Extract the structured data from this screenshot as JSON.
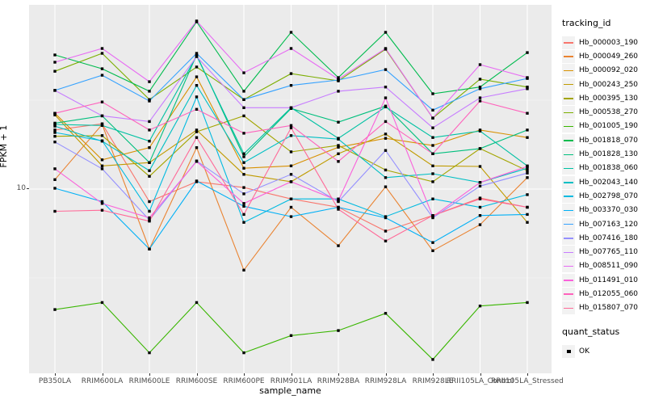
{
  "figure": {
    "y_axis_title": "FPKM + 1",
    "x_axis_title": "sample_name",
    "y_tick_label": "10",
    "colors": {
      "panel_background": "#EBEBEB",
      "grid_line": "#FFFFFF",
      "tick_text": "#4D4D4D",
      "point_marker": "#000000",
      "legend_key_background": "#F2F2F2"
    },
    "legend": {
      "tracking_title": "tracking_id",
      "quant_title": "quant_status",
      "quant_items": [
        {
          "label": "OK",
          "marker": "black-filled-square"
        }
      ]
    }
  },
  "chart_data": {
    "type": "line",
    "title": "",
    "xlabel": "sample_name",
    "ylabel": "FPKM + 1",
    "y_scale": "log10",
    "y_ticks": [
      10
    ],
    "y_minor_ticks": [
      3.162,
      31.62
    ],
    "grid": true,
    "legend_position": "right",
    "point_marker": "filled-square",
    "categories": [
      "PB350LA",
      "RRIM600LA",
      "RRIM600LE",
      "RRIM600SE",
      "RRIM600PE",
      "RRIM901LA",
      "RRIM928BA",
      "RRIM928LA",
      "RRIM928LE",
      "RRII105LA_Control",
      "RRII105LA_Stressed"
    ],
    "series": [
      {
        "name": "Hb_000003_190",
        "color": "#F8766D",
        "values": [
          21.5,
          23.3,
          8.5,
          11.0,
          10.2,
          8.8,
          7.9,
          5.8,
          7.1,
          8.9,
          7.9
        ]
      },
      {
        "name": "Hb_000049_260",
        "color": "#EA8331",
        "values": [
          11.3,
          23.1,
          4.6,
          17.1,
          3.5,
          7.9,
          4.8,
          10.3,
          4.5,
          6.3,
          11.6
        ]
      },
      {
        "name": "Hb_000092_020",
        "color": "#D89000",
        "values": [
          26.7,
          14.6,
          17.1,
          42.8,
          13.1,
          13.5,
          17.2,
          19.3,
          17.6,
          21.5,
          19.5
        ]
      },
      {
        "name": "Hb_000243_250",
        "color": "#C09B00",
        "values": [
          26.1,
          13.5,
          14.1,
          21.5,
          12.1,
          11.0,
          15.8,
          20.4,
          13.5,
          13.4,
          6.5
        ]
      },
      {
        "name": "Hb_000395_130",
        "color": "#A3A500",
        "values": [
          19.8,
          20.0,
          11.8,
          21.0,
          25.8,
          16.2,
          17.6,
          12.8,
          11.0,
          16.9,
          12.7
        ]
      },
      {
        "name": "Hb_000538_270",
        "color": "#7CAE00",
        "values": [
          46.0,
          58.0,
          31.9,
          48.6,
          31.9,
          44.6,
          40.6,
          61.2,
          25.1,
          41.5,
          37.5
        ]
      },
      {
        "name": "Hb_001005_190",
        "color": "#39B600",
        "values": [
          2.1,
          2.3,
          1.2,
          2.3,
          1.2,
          1.5,
          1.6,
          2.0,
          1.1,
          2.2,
          2.3
        ]
      },
      {
        "name": "Hb_001818_070",
        "color": "#00BB4E",
        "values": [
          56.8,
          47.5,
          35.5,
          87.3,
          35.5,
          76.2,
          42.4,
          76.2,
          34.4,
          37.5,
          58.6
        ]
      },
      {
        "name": "Hb_001828_130",
        "color": "#00BF7D",
        "values": [
          23.5,
          25.8,
          14.1,
          56.8,
          15.2,
          28.4,
          23.8,
          29.3,
          15.8,
          16.9,
          21.5
        ]
      },
      {
        "name": "Hb_001838_060",
        "color": "#00C1A3",
        "values": [
          23.1,
          22.8,
          18.6,
          56.2,
          15.8,
          28.7,
          19.3,
          29.0,
          19.5,
          21.2,
          13.5
        ]
      },
      {
        "name": "Hb_002043_140",
        "color": "#00BFC4",
        "values": [
          22.6,
          18.6,
          12.7,
          38.3,
          14.1,
          20.0,
          19.1,
          11.6,
          12.2,
          10.9,
          13.1
        ]
      },
      {
        "name": "Hb_002798_070",
        "color": "#00BAE0",
        "values": [
          20.8,
          18.7,
          7.5,
          33.0,
          6.5,
          8.8,
          8.8,
          7.0,
          8.8,
          7.9,
          9.3
        ]
      },
      {
        "name": "Hb_003370_030",
        "color": "#00B0F6",
        "values": [
          10.1,
          8.5,
          4.6,
          11.1,
          8.0,
          7.0,
          7.9,
          6.9,
          5.0,
          7.1,
          7.2
        ]
      },
      {
        "name": "Hb_007163_120",
        "color": "#35A2FF",
        "values": [
          35.9,
          43.7,
          31.3,
          58.0,
          31.9,
          38.3,
          41.1,
          47.0,
          27.8,
          36.7,
          41.9
        ]
      },
      {
        "name": "Hb_007416_180",
        "color": "#9590FF",
        "values": [
          18.4,
          13.0,
          6.7,
          14.4,
          9.4,
          12.1,
          8.5,
          16.5,
          6.9,
          10.4,
          12.3
        ]
      },
      {
        "name": "Hb_007765_110",
        "color": "#C77CFF",
        "values": [
          35.9,
          25.8,
          24.0,
          55.6,
          28.7,
          28.7,
          35.5,
          37.5,
          22.1,
          32.6,
          36.7
        ]
      },
      {
        "name": "Hb_008511_090",
        "color": "#E76BF3",
        "values": [
          51.7,
          61.8,
          40.2,
          88.2,
          45.1,
          61.8,
          41.5,
          61.8,
          25.1,
          50.1,
          42.4
        ]
      },
      {
        "name": "Hb_011491_010",
        "color": "#FA62DB",
        "values": [
          13.0,
          8.3,
          6.9,
          14.3,
          8.3,
          11.0,
          8.6,
          32.6,
          7.0,
          10.9,
          13.4
        ]
      },
      {
        "name": "Hb_012055_060",
        "color": "#FF62BC",
        "values": [
          26.7,
          30.9,
          21.5,
          28.1,
          20.6,
          22.8,
          14.3,
          24.0,
          15.8,
          31.3,
          26.7
        ]
      },
      {
        "name": "Hb_015807_070",
        "color": "#FF6A98",
        "values": [
          7.5,
          7.6,
          6.6,
          19.5,
          7.2,
          22.1,
          7.7,
          5.1,
          7.1,
          8.8,
          7.9
        ]
      }
    ]
  }
}
